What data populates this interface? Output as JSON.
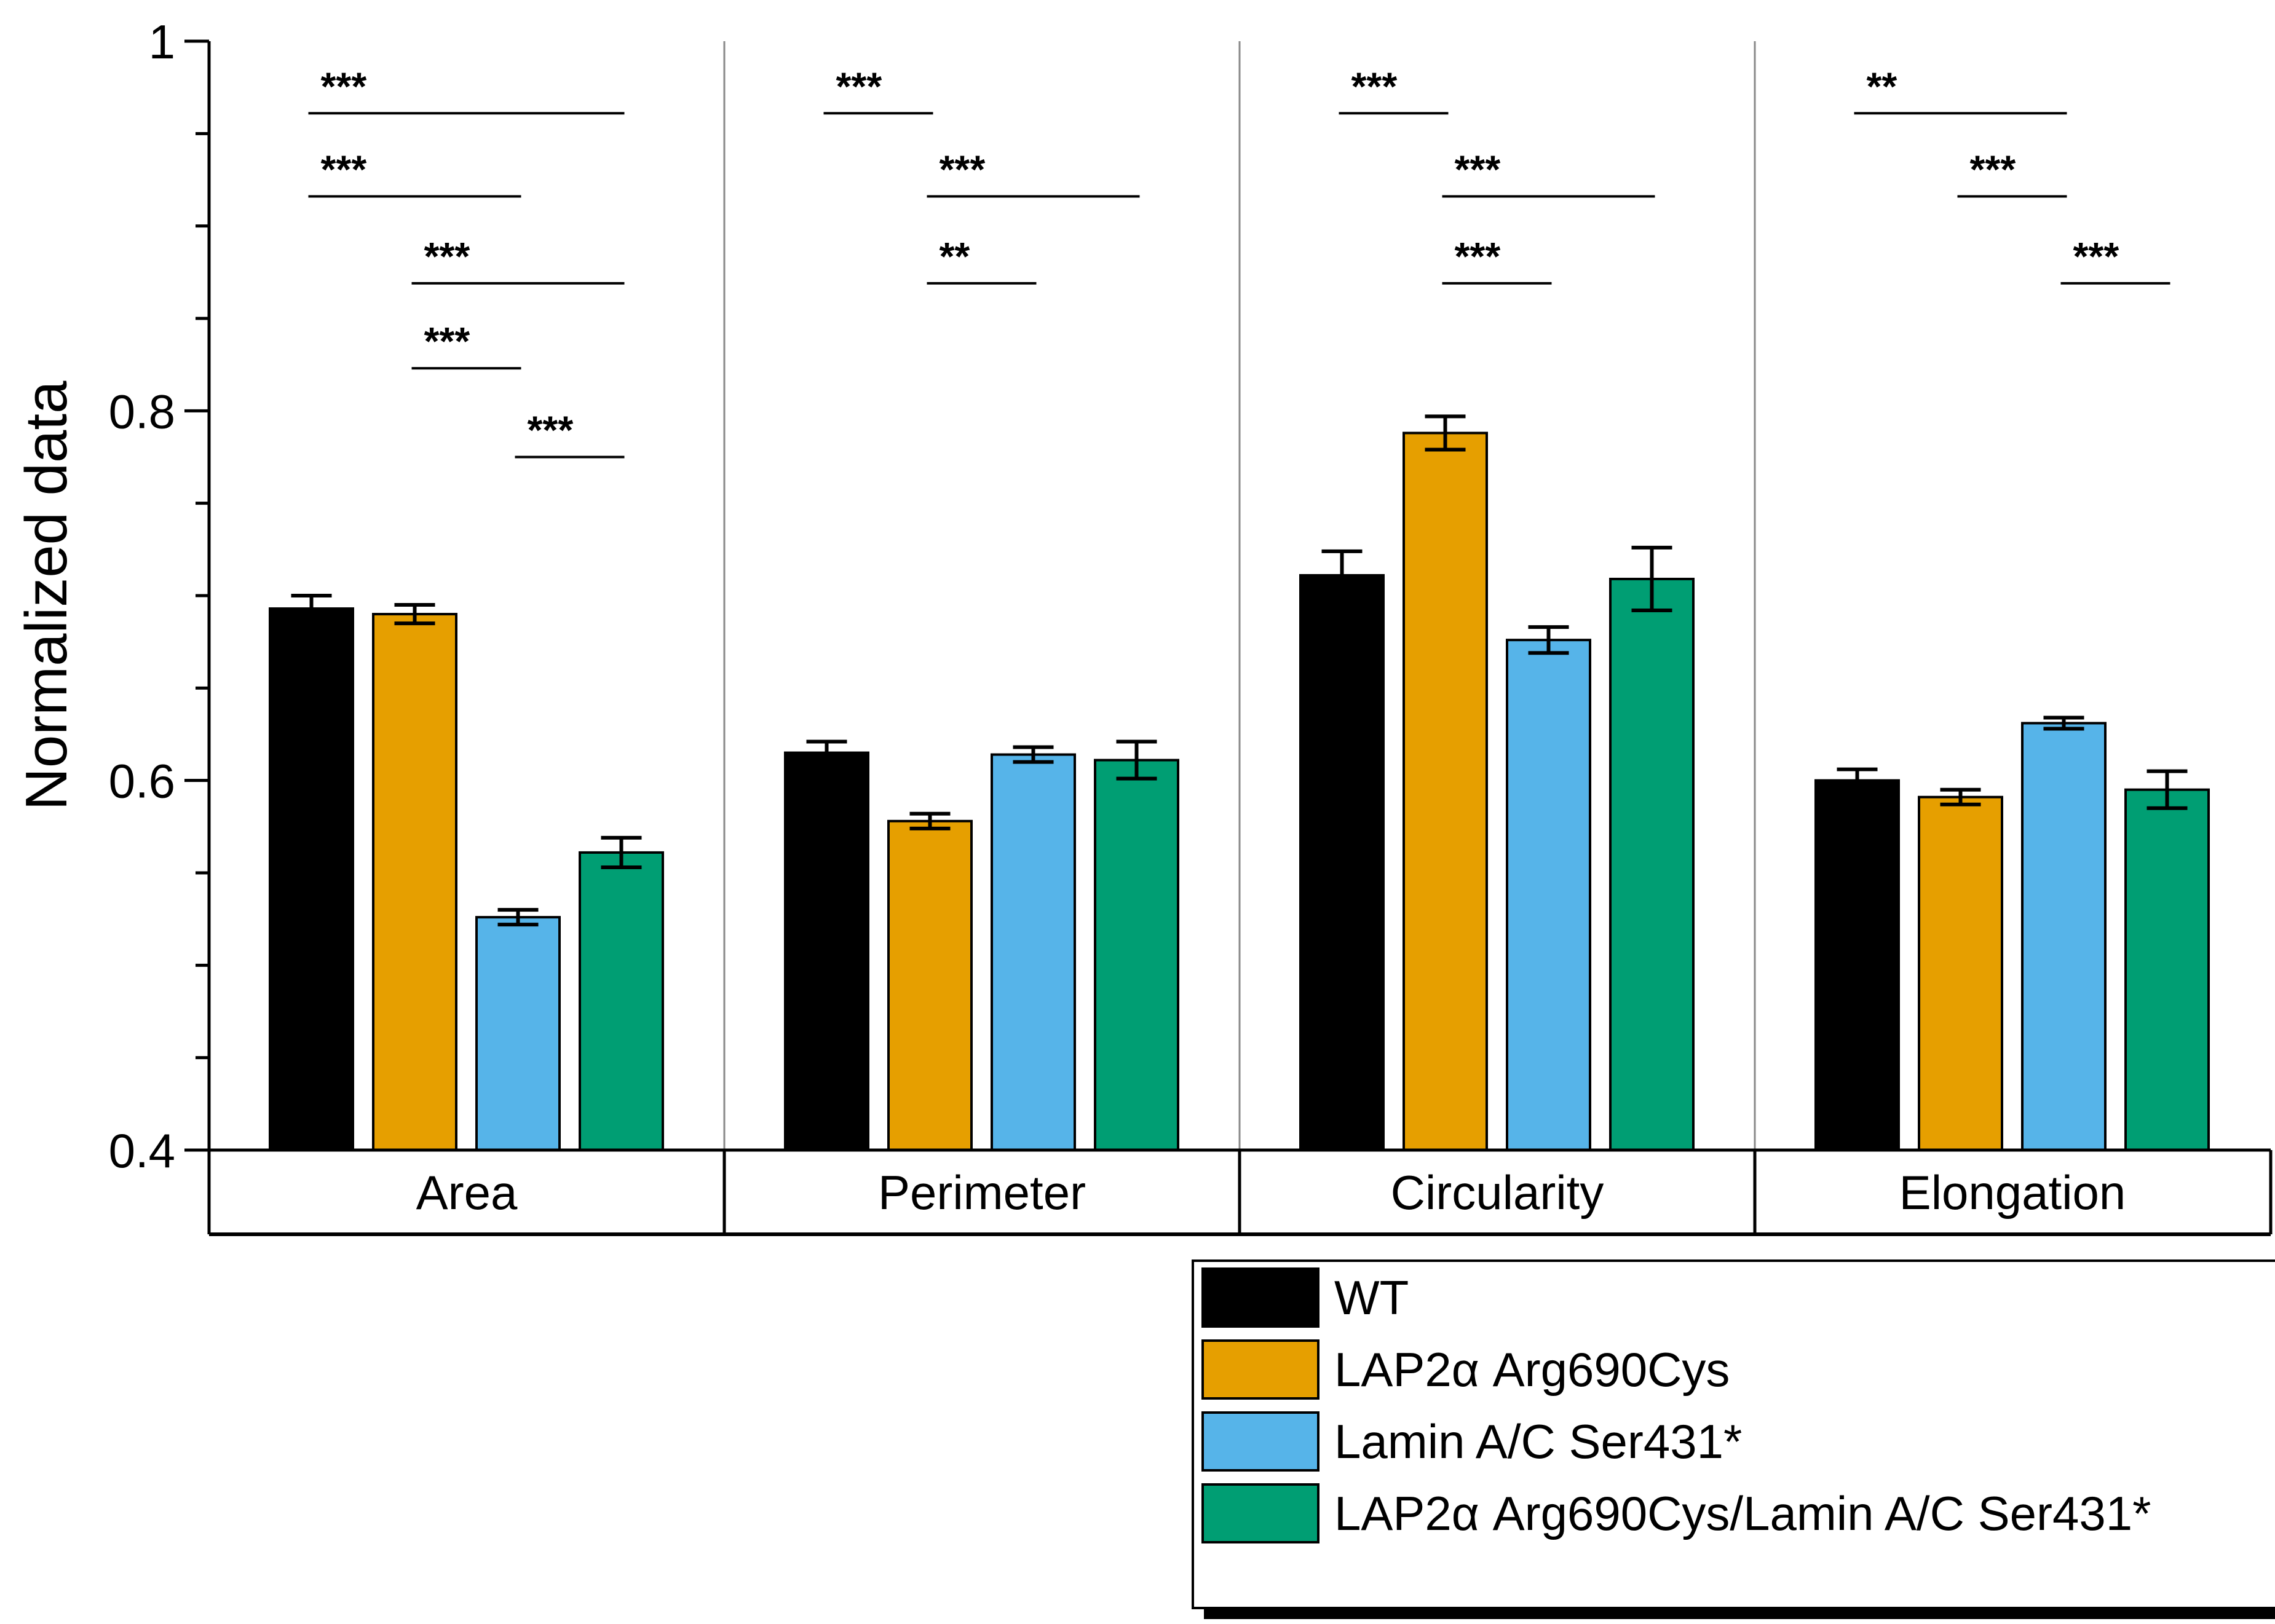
{
  "chart_data": {
    "type": "bar",
    "ylabel": "Normalized data",
    "ylim": [
      0.4,
      1.0
    ],
    "yticks": [
      {
        "value": 0.4,
        "label": "0.4"
      },
      {
        "value": 0.6,
        "label": "0.6"
      },
      {
        "value": 0.8,
        "label": "0.8"
      },
      {
        "value": 1.0,
        "label": "1"
      }
    ],
    "categories": [
      "Area",
      "Perimeter",
      "Circularity",
      "Elongation"
    ],
    "series": [
      {
        "name": "WT",
        "color": "#000000",
        "values": [
          0.693,
          0.615,
          0.711,
          0.6
        ],
        "errors": [
          0.007,
          0.006,
          0.013,
          0.006
        ]
      },
      {
        "name": "LAP2α Arg690Cys",
        "color": "#E69F00",
        "values": [
          0.69,
          0.578,
          0.788,
          0.591
        ],
        "errors": [
          0.005,
          0.004,
          0.009,
          0.004
        ]
      },
      {
        "name": "Lamin A/C Ser431*",
        "color": "#56B4E9",
        "values": [
          0.526,
          0.614,
          0.676,
          0.631
        ],
        "errors": [
          0.004,
          0.004,
          0.007,
          0.003
        ]
      },
      {
        "name": "LAP2α Arg690Cys/Lamin A/C Ser431*",
        "color": "#009E73",
        "values": [
          0.561,
          0.611,
          0.709,
          0.595
        ],
        "errors": [
          0.008,
          0.01,
          0.017,
          0.01
        ]
      }
    ],
    "significance": [
      {
        "category": 0,
        "from": 0,
        "to": 3,
        "label": "***",
        "y": 0.961
      },
      {
        "category": 0,
        "from": 0,
        "to": 2,
        "label": "***",
        "y": 0.916
      },
      {
        "category": 0,
        "from": 1,
        "to": 3,
        "label": "***",
        "y": 0.869
      },
      {
        "category": 0,
        "from": 1,
        "to": 2,
        "label": "***",
        "y": 0.823
      },
      {
        "category": 0,
        "from": 2,
        "to": 3,
        "label": "***",
        "y": 0.775
      },
      {
        "category": 1,
        "from": 0,
        "to": 1,
        "label": "***",
        "y": 0.961
      },
      {
        "category": 1,
        "from": 1,
        "to": 3,
        "label": "***",
        "y": 0.916
      },
      {
        "category": 1,
        "from": 1,
        "to": 2,
        "label": "**",
        "y": 0.869
      },
      {
        "category": 2,
        "from": 0,
        "to": 1,
        "label": "***",
        "y": 0.961
      },
      {
        "category": 2,
        "from": 1,
        "to": 3,
        "label": "***",
        "y": 0.916
      },
      {
        "category": 2,
        "from": 1,
        "to": 2,
        "label": "***",
        "y": 0.869
      },
      {
        "category": 3,
        "from": 0,
        "to": 2,
        "label": "**",
        "y": 0.961
      },
      {
        "category": 3,
        "from": 1,
        "to": 2,
        "label": "***",
        "y": 0.916
      },
      {
        "category": 3,
        "from": 2,
        "to": 3,
        "label": "***",
        "y": 0.869
      }
    ],
    "legend": {
      "position": "bottom-right"
    },
    "grid": false
  }
}
